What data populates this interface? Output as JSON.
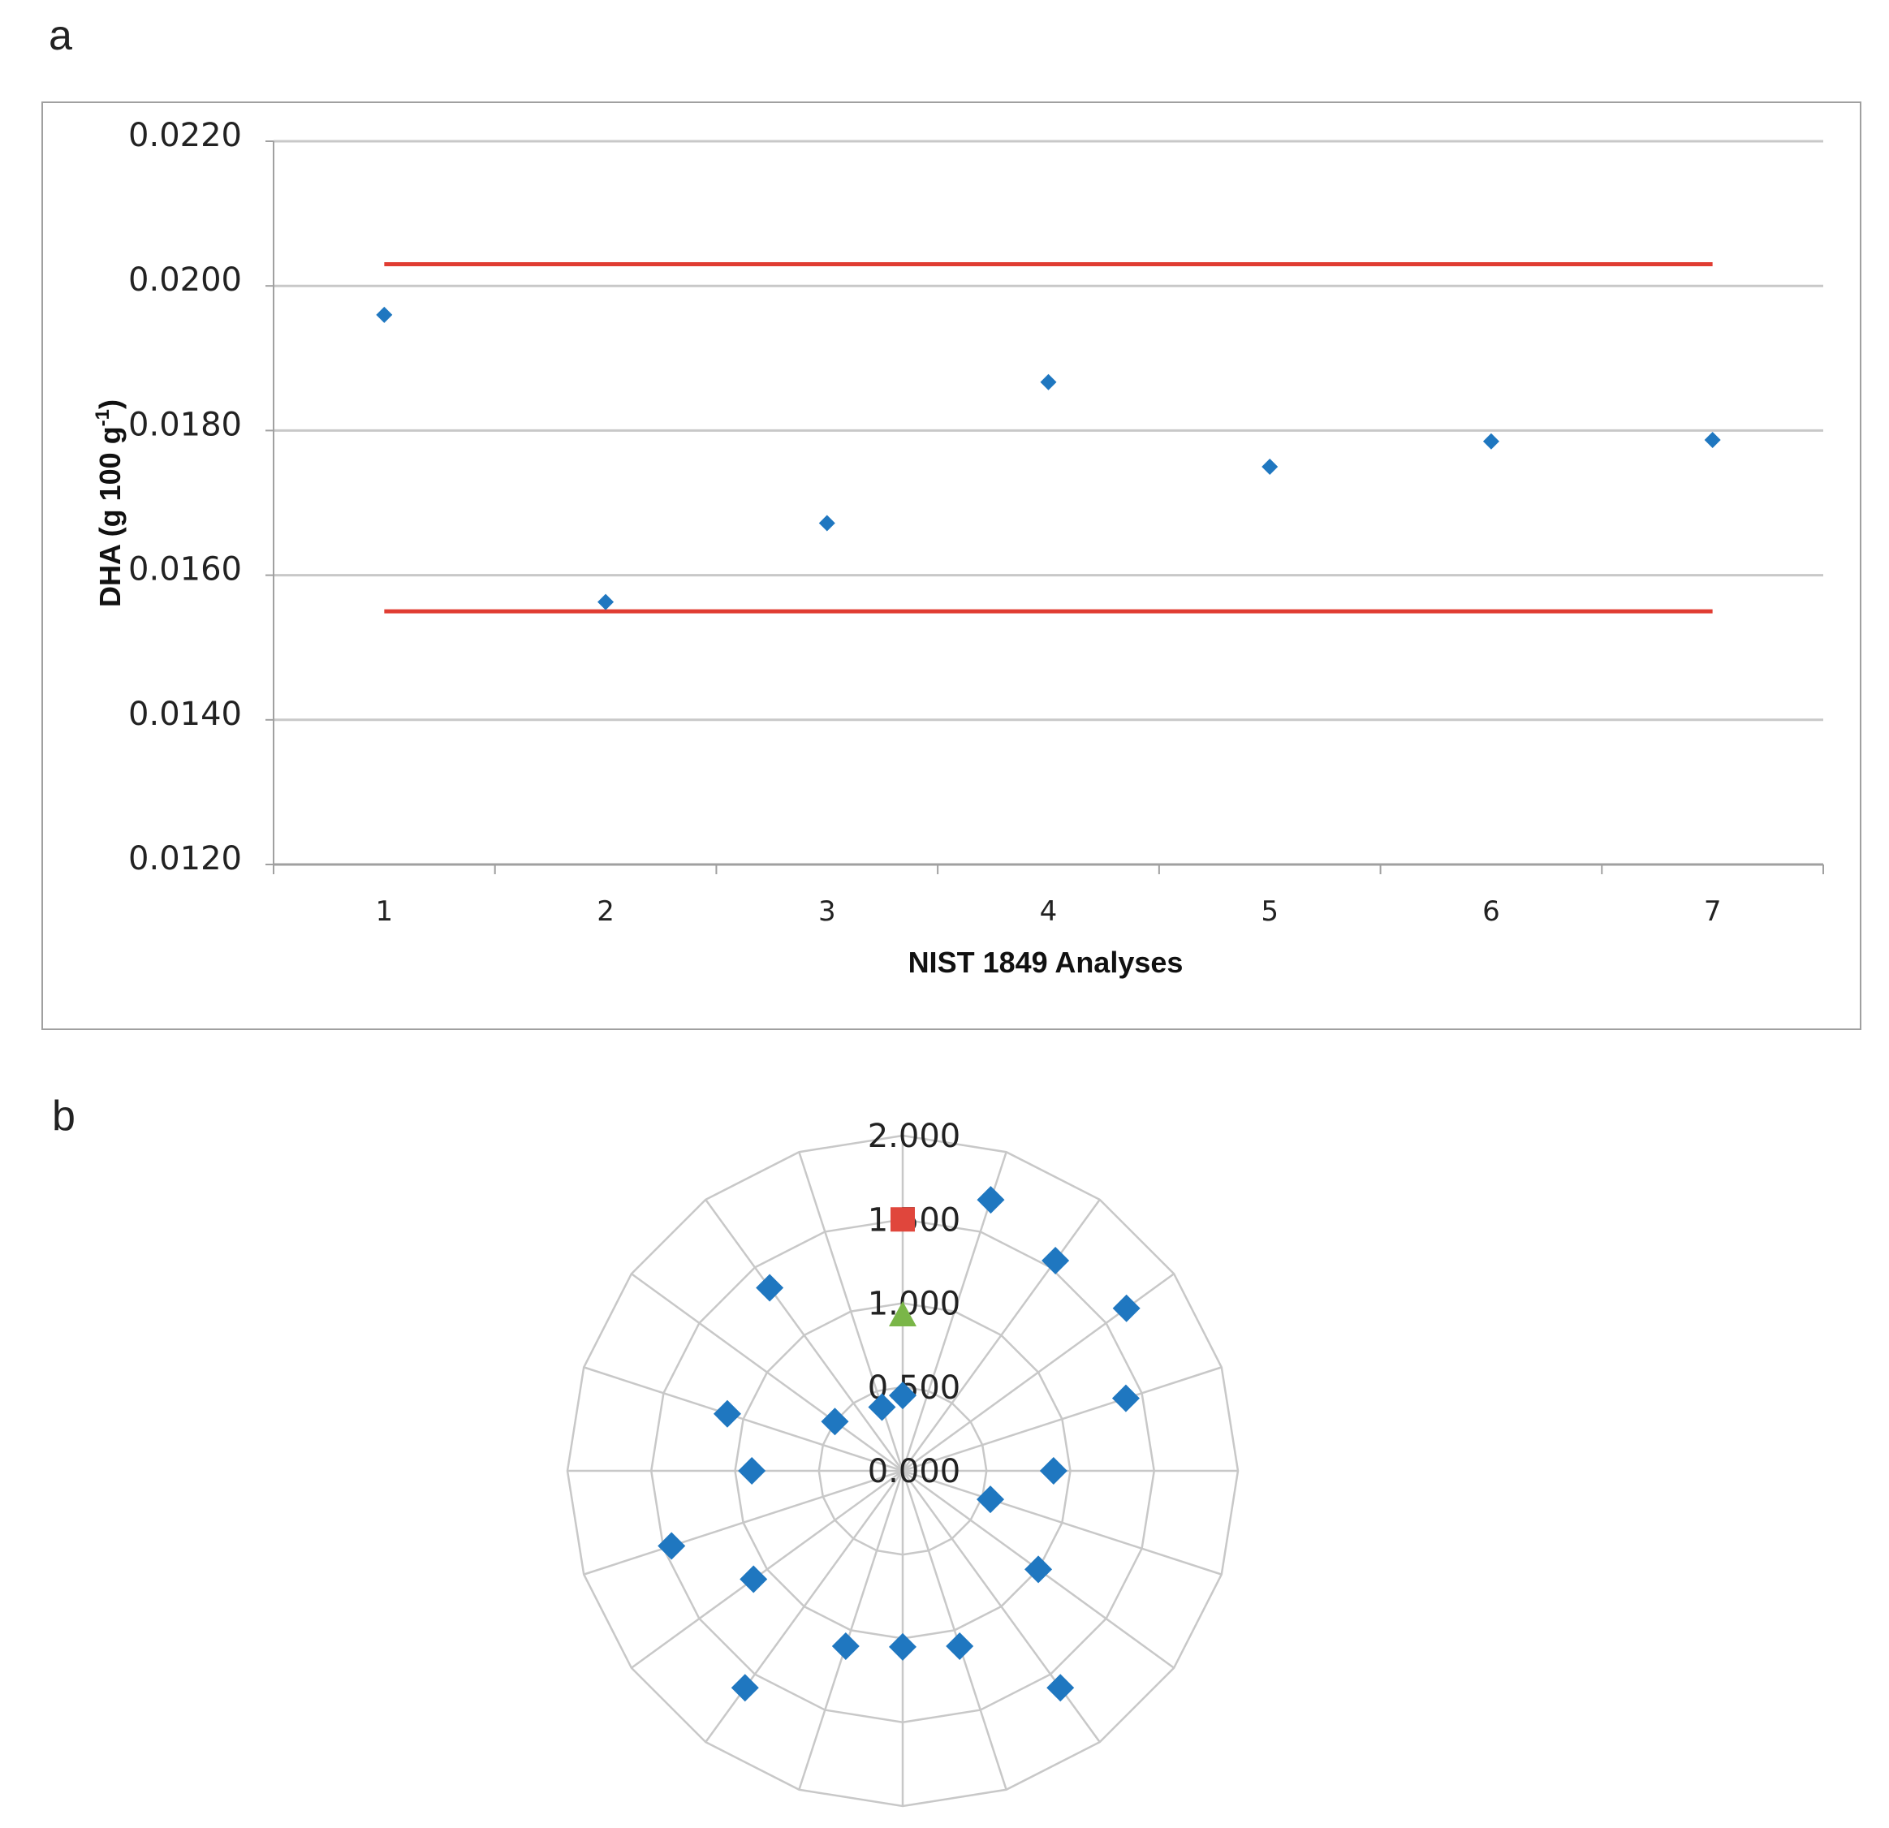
{
  "panels": {
    "a": "a",
    "b": "b"
  },
  "colors": {
    "series": "#1f77c0",
    "limit": "#e03c32",
    "grid": "#c8c8c8",
    "axis": "#a0a0a0",
    "square": "#e0463c",
    "triangle": "#7ab648"
  },
  "chart_data": [
    {
      "type": "scatter",
      "title": "",
      "xlabel": "NIST 1849 Analyses",
      "ylabel": "DHA (g 100 g",
      "ylabel_sup": "-1",
      "ylabel_end": ")",
      "x": [
        1,
        2,
        3,
        4,
        5,
        6,
        7
      ],
      "categories": [
        "1",
        "2",
        "3",
        "4",
        "5",
        "6",
        "7"
      ],
      "y": [
        0.0196,
        0.01563,
        0.01672,
        0.01867,
        0.0175,
        0.01785,
        0.01787
      ],
      "ylim": [
        0.012,
        0.022
      ],
      "yticks": [
        "0.0120",
        "0.0140",
        "0.0160",
        "0.0180",
        "0.0200",
        "0.0220"
      ],
      "ytick_values": [
        0.012,
        0.014,
        0.016,
        0.018,
        0.02,
        0.022
      ],
      "limits": [
        {
          "y": 0.0203,
          "x_from": 1,
          "x_to": 7
        },
        {
          "y": 0.0155,
          "x_from": 1,
          "x_to": 7
        }
      ],
      "grid": true,
      "marker": "diamond"
    },
    {
      "type": "radar",
      "rlim": [
        0,
        2.0
      ],
      "rticks": [
        "0.000",
        "0.500",
        "1.000",
        "1.500",
        "2.000"
      ],
      "rtick_values": [
        0,
        0.5,
        1.0,
        1.5,
        2.0
      ],
      "n_spokes": 20,
      "series": [
        {
          "marker": "diamond",
          "values": [
            0.45,
            1.7,
            1.55,
            1.65,
            1.4,
            0.9,
            0.55,
            1.0,
            1.6,
            1.1,
            1.05,
            1.1,
            1.6,
            1.1,
            1.45,
            0.9,
            1.1,
            0.5,
            1.35,
            0.4
          ]
        },
        {
          "marker": "square",
          "values": [
            1.5
          ]
        },
        {
          "marker": "triangle",
          "values": [
            0.93
          ]
        }
      ]
    }
  ]
}
